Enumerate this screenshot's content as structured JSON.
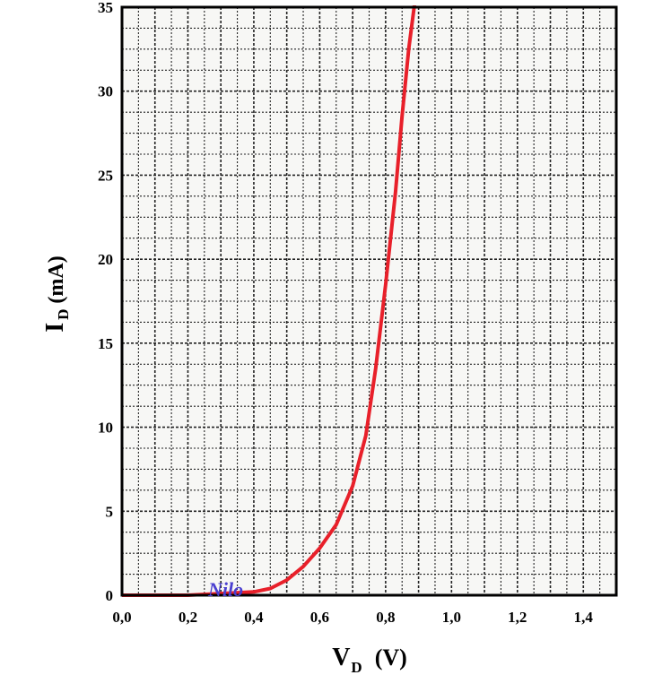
{
  "chart_data": {
    "type": "line",
    "title": "",
    "xlabel": {
      "main": "V",
      "sub": "D",
      "unit": "(V)"
    },
    "ylabel": {
      "main": "I",
      "sub": "D",
      "unit": "(mA)"
    },
    "xlim": [
      0,
      1.5
    ],
    "ylim": [
      0,
      35
    ],
    "x_ticks": [
      "0,0",
      "0,2",
      "0,4",
      "0,6",
      "0,8",
      "1,0",
      "1,2",
      "1,4"
    ],
    "x_tick_values": [
      0,
      0.2,
      0.4,
      0.6,
      0.8,
      1.0,
      1.2,
      1.4
    ],
    "y_ticks": [
      "0",
      "5",
      "10",
      "15",
      "20",
      "25",
      "30",
      "35"
    ],
    "y_tick_values": [
      0,
      5,
      10,
      15,
      20,
      25,
      30,
      35
    ],
    "grid": true,
    "legend": "none",
    "series": [
      {
        "color": "#e8202a",
        "x": [
          0.0,
          0.2,
          0.3,
          0.4,
          0.45,
          0.5,
          0.55,
          0.6,
          0.65,
          0.7,
          0.74,
          0.77,
          0.8,
          0.83,
          0.85,
          0.87,
          0.89
        ],
        "y": [
          0.0,
          0.0,
          0.1,
          0.2,
          0.4,
          0.9,
          1.7,
          2.8,
          4.2,
          6.5,
          9.5,
          13.5,
          18.5,
          24.0,
          28.5,
          32.5,
          35.5
        ]
      }
    ],
    "watermark": "Nilo"
  }
}
